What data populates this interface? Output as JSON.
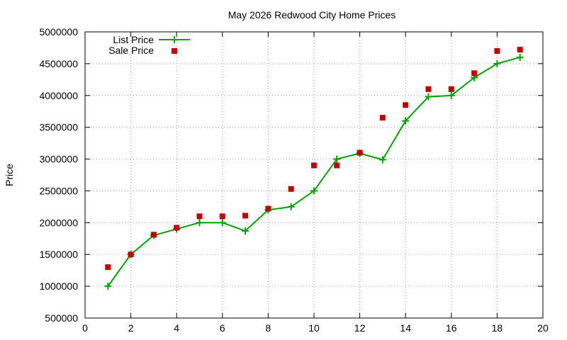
{
  "chart_data": {
    "type": "line",
    "title": "May 2026 Redwood City Home Prices",
    "xlabel": "",
    "ylabel": "Price",
    "xlim": [
      0,
      20
    ],
    "ylim": [
      500000,
      5000000
    ],
    "xticks": [
      0,
      2,
      4,
      6,
      8,
      10,
      12,
      14,
      16,
      18,
      20
    ],
    "yticks": [
      500000,
      1000000,
      1500000,
      2000000,
      2500000,
      3000000,
      3500000,
      4000000,
      4500000,
      5000000
    ],
    "grid": true,
    "legend": "top-left",
    "series": [
      {
        "name": "List Price",
        "style": "line+cross",
        "color": "#00a000",
        "x": [
          1,
          2,
          3,
          4,
          5,
          6,
          7,
          8,
          9,
          10,
          11,
          12,
          13,
          14,
          15,
          16,
          17,
          18,
          19
        ],
        "y": [
          1000000,
          1500000,
          1800000,
          1900000,
          2000000,
          2000000,
          1870000,
          2200000,
          2250000,
          2500000,
          3000000,
          3090000,
          2990000,
          3600000,
          3980000,
          4000000,
          4280000,
          4500000,
          4600000
        ]
      },
      {
        "name": "Sale Price",
        "style": "square",
        "color": "#c00000",
        "x": [
          1,
          2,
          3,
          4,
          5,
          6,
          7,
          8,
          9,
          10,
          11,
          12,
          13,
          14,
          15,
          16,
          17,
          18,
          19
        ],
        "y": [
          1300000,
          1500000,
          1810000,
          1920000,
          2100000,
          2100000,
          2110000,
          2220000,
          2530000,
          2900000,
          2900000,
          3100000,
          3650000,
          3850000,
          4100000,
          4100000,
          4350000,
          4700000,
          4720000
        ]
      }
    ]
  }
}
